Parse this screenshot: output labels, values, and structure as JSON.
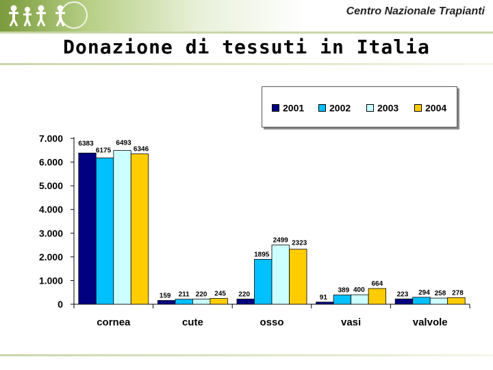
{
  "header": {
    "org_name": "Centro Nazionale Trapianti",
    "logo_icon": "people-logo-icon"
  },
  "slide": {
    "title": "Donazione di tessuti in Italia"
  },
  "colors": {
    "header_green": "#7a9a3c",
    "series": [
      "#000080",
      "#00c0ff",
      "#ccffff",
      "#ffcc00"
    ]
  },
  "chart_data": {
    "type": "bar",
    "title": "",
    "xlabel": "",
    "ylabel": "",
    "categories": [
      "cornea",
      "cute",
      "osso",
      "vasi",
      "valvole"
    ],
    "series": [
      {
        "name": "2001",
        "values": [
          6383,
          159,
          220,
          91,
          223
        ]
      },
      {
        "name": "2002",
        "values": [
          6175,
          211,
          1895,
          389,
          294
        ]
      },
      {
        "name": "2003",
        "values": [
          6493,
          220,
          2499,
          400,
          258
        ]
      },
      {
        "name": "2004",
        "values": [
          6346,
          245,
          2323,
          664,
          278
        ]
      }
    ],
    "ylim": [
      0,
      7000
    ],
    "yticks": [
      0,
      1000,
      2000,
      3000,
      4000,
      5000,
      6000,
      7000
    ],
    "ytick_labels": [
      "0",
      "1.000",
      "2.000",
      "3.000",
      "4.000",
      "5.000",
      "6.000",
      "7.000"
    ],
    "grid": false,
    "legend": "top-right"
  }
}
